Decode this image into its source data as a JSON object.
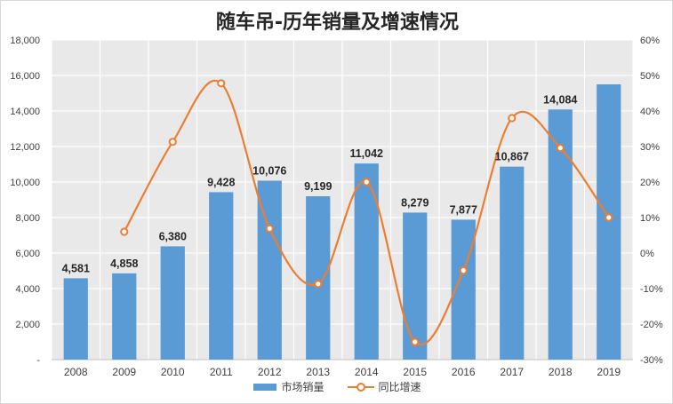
{
  "chart_data": {
    "type": "bar",
    "title": "随车吊-历年销量及增速情况",
    "categories": [
      "2008",
      "2009",
      "2010",
      "2011",
      "2012",
      "2013",
      "2014",
      "2015",
      "2016",
      "2017",
      "2018",
      "2019"
    ],
    "series": [
      {
        "name": "市场销量",
        "type": "bar",
        "axis": "left",
        "color": "#5B9BD5",
        "values": [
          4581,
          4858,
          6380,
          9428,
          10076,
          9199,
          11042,
          8279,
          7877,
          10867,
          14084,
          15500
        ],
        "labels": [
          "4,581",
          "4,858",
          "6,380",
          "9,428",
          "10,076",
          "9,199",
          "11,042",
          "8,279",
          "7,877",
          "10,867",
          "14,084",
          ""
        ]
      },
      {
        "name": "同比增速",
        "type": "line",
        "smooth": true,
        "axis": "right",
        "color": "#ED7D31",
        "values": [
          null,
          6.0,
          31.3,
          47.8,
          6.9,
          -8.7,
          20.0,
          -25.0,
          -4.9,
          38.0,
          29.6,
          10.0
        ]
      }
    ],
    "ylim": [
      0,
      18000
    ],
    "y_ticks": [
      "-",
      "2,000",
      "4,000",
      "6,000",
      "8,000",
      "10,000",
      "12,000",
      "14,000",
      "16,000",
      "18,000"
    ],
    "y2lim": [
      -30,
      60
    ],
    "y2_ticks": [
      "-30%",
      "-20%",
      "-10%",
      "0%",
      "10%",
      "20%",
      "30%",
      "40%",
      "50%",
      "60%"
    ],
    "grid": true,
    "legend": "bottom"
  }
}
